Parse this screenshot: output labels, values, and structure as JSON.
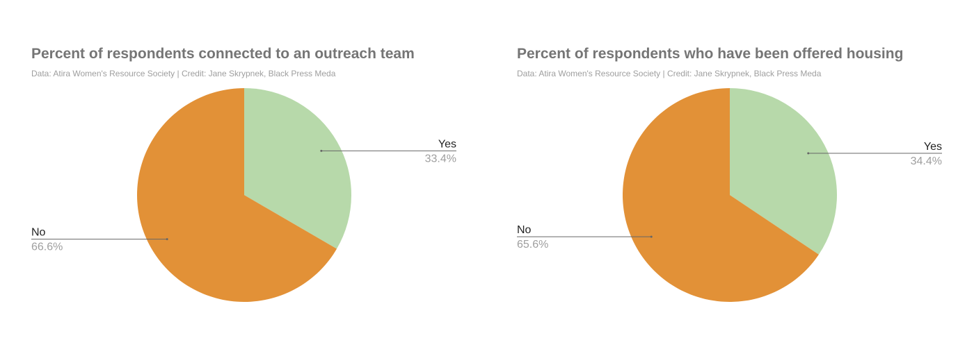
{
  "chart_data": [
    {
      "type": "pie",
      "title": "Percent of respondents connected to an outreach team",
      "subtitle": "Data: Atira Women's Resource Society | Credit: Jane Skrypnek, Black Press Meda",
      "slices": [
        {
          "label": "Yes",
          "value": 33.4,
          "value_label": "33.4%",
          "color": "#b7d9aa"
        },
        {
          "label": "No",
          "value": 66.6,
          "value_label": "66.6%",
          "color": "#e29137"
        }
      ]
    },
    {
      "type": "pie",
      "title": "Percent of respondents who have been offered housing",
      "subtitle": "Data: Atira Women's Resource Society | Credit: Jane Skrypnek, Black Press Meda",
      "slices": [
        {
          "label": "Yes",
          "value": 34.4,
          "value_label": "34.4%",
          "color": "#b7d9aa"
        },
        {
          "label": "No",
          "value": 65.6,
          "value_label": "65.6%",
          "color": "#e29137"
        }
      ]
    }
  ]
}
